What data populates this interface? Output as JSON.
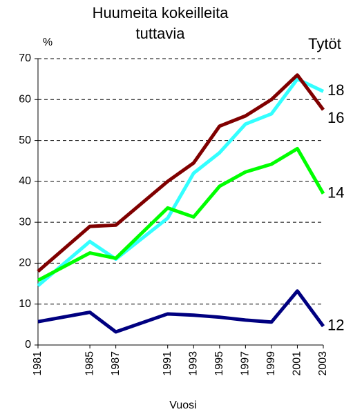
{
  "chart_data": {
    "type": "line",
    "title": [
      "Huumeita kokeilleita",
      "tuttavia"
    ],
    "y_label": "%",
    "legend_title": "Tytöt",
    "x_label": "Vuosi",
    "x": [
      1981,
      1985,
      1987,
      1991,
      1993,
      1995,
      1997,
      1999,
      2001,
      2003
    ],
    "xlim": [
      1981,
      2003
    ],
    "xticks": [
      1981,
      1985,
      1987,
      1991,
      1993,
      1995,
      1997,
      1999,
      2001,
      2003
    ],
    "ylim": [
      0,
      70
    ],
    "yticks": [
      0,
      10,
      20,
      30,
      40,
      50,
      60,
      70
    ],
    "grid": true,
    "series": [
      {
        "name": "18",
        "color": "#33ffff",
        "values": [
          14.5,
          25.3,
          21,
          31,
          42,
          47,
          54,
          56.5,
          65,
          62
        ]
      },
      {
        "name": "16",
        "color": "#800000",
        "values": [
          18,
          29,
          29.3,
          40,
          44.5,
          53.5,
          56,
          60,
          66,
          57.5
        ]
      },
      {
        "name": "14",
        "color": "#00ff00",
        "values": [
          15.8,
          22.5,
          21.2,
          33.5,
          31.3,
          38.8,
          42.3,
          44.2,
          48,
          37
        ]
      },
      {
        "name": "12",
        "color": "#000080",
        "values": [
          5.7,
          8,
          3.2,
          7.6,
          7.3,
          6.8,
          6.1,
          5.6,
          13.2,
          4.6
        ]
      }
    ]
  }
}
